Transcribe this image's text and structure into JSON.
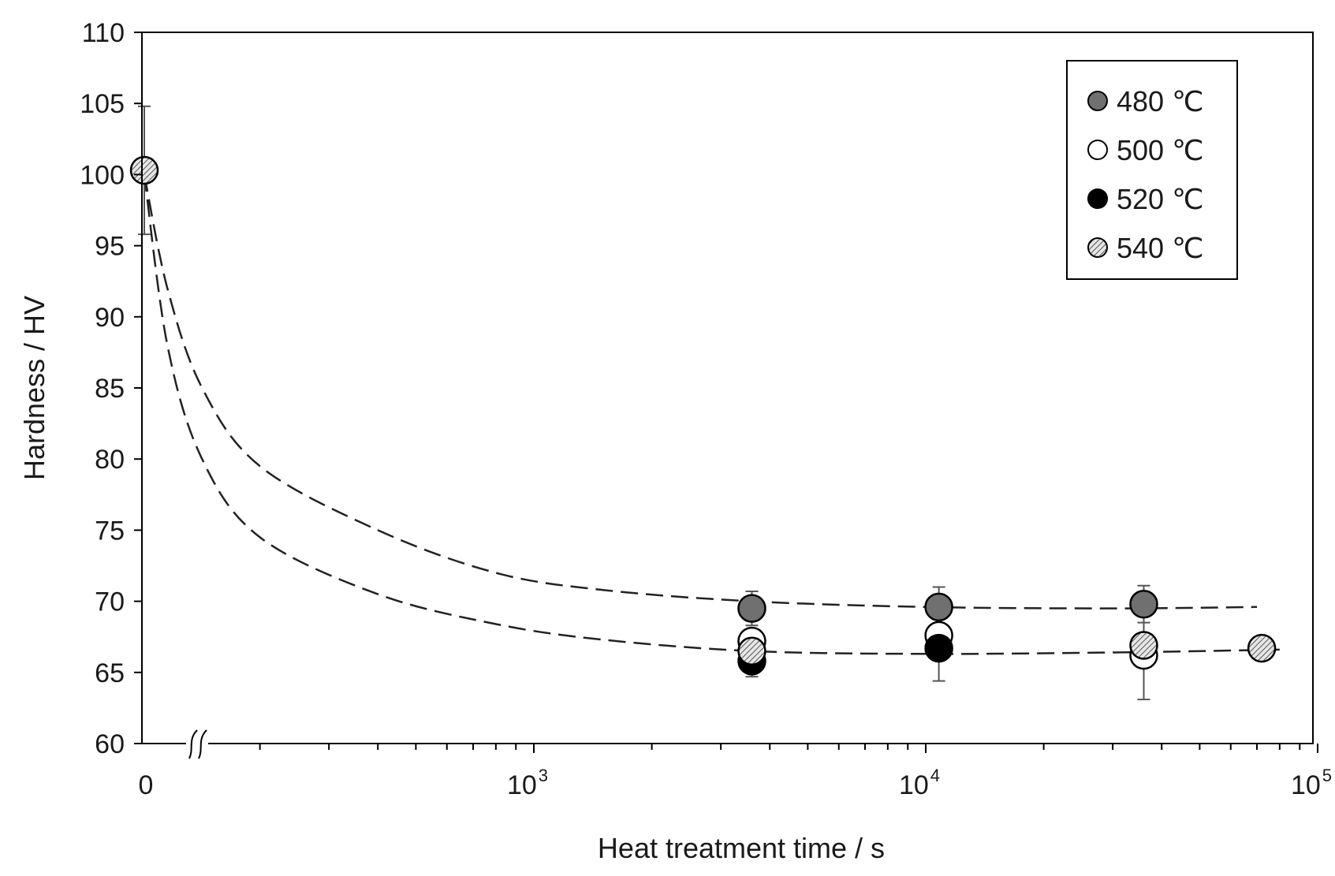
{
  "chart_data": {
    "type": "scatter",
    "xlabel": "Heat treatment time / s",
    "ylabel": "Hardness / HV",
    "x_scale": "log with axis break after 0",
    "xlim": [
      0,
      100000
    ],
    "ylim": [
      60,
      110
    ],
    "x_tick_labels": [
      {
        "value": 0,
        "base": "0",
        "exp": ""
      },
      {
        "value": 1000,
        "base": "10",
        "exp": "3"
      },
      {
        "value": 10000,
        "base": "10",
        "exp": "4"
      },
      {
        "value": 100000,
        "base": "10",
        "exp": "5"
      }
    ],
    "y_ticks": [
      "60",
      "65",
      "70",
      "75",
      "80",
      "85",
      "90",
      "95",
      "100",
      "105",
      "110"
    ],
    "legend_position": "top-right",
    "series": [
      {
        "name": "480 ℃",
        "marker": "gray",
        "points": [
          {
            "x": 3600,
            "y": 69.5,
            "err": 1.2
          },
          {
            "x": 10800,
            "y": 69.6,
            "err": 1.4
          },
          {
            "x": 36000,
            "y": 69.8,
            "err": 1.3
          }
        ]
      },
      {
        "name": "500 ℃",
        "marker": "open",
        "points": [
          {
            "x": 3600,
            "y": 67.2,
            "err": 0
          },
          {
            "x": 10800,
            "y": 67.6,
            "err": 0
          },
          {
            "x": 36000,
            "y": 66.2,
            "err": 3.1
          }
        ]
      },
      {
        "name": "520 ℃",
        "marker": "black",
        "points": [
          {
            "x": 3600,
            "y": 65.8,
            "err": 1.1
          },
          {
            "x": 10800,
            "y": 66.7,
            "err": 2.3
          }
        ]
      },
      {
        "name": "540 ℃",
        "marker": "hatched",
        "points": [
          {
            "x": 0,
            "y": 100.3,
            "err": 4.5
          },
          {
            "x": 3600,
            "y": 66.5,
            "err": 0
          },
          {
            "x": 36000,
            "y": 66.9,
            "err": 0
          },
          {
            "x": 72000,
            "y": 66.7,
            "err": 0
          }
        ]
      }
    ],
    "fit_curves": [
      {
        "style": "dashed",
        "description": "upper fit",
        "points": [
          [
            0,
            100
          ],
          [
            40,
            92
          ],
          [
            100,
            85
          ],
          [
            200,
            79.5
          ],
          [
            400,
            75
          ],
          [
            800,
            72
          ],
          [
            1500,
            70.8
          ],
          [
            3600,
            70.0
          ],
          [
            10000,
            69.6
          ],
          [
            30000,
            69.5
          ],
          [
            70000,
            69.6
          ]
        ]
      },
      {
        "style": "dashed",
        "description": "lower fit",
        "points": [
          [
            0,
            100
          ],
          [
            40,
            88
          ],
          [
            100,
            80
          ],
          [
            200,
            74.5
          ],
          [
            400,
            70.5
          ],
          [
            800,
            68.4
          ],
          [
            1500,
            67.3
          ],
          [
            3600,
            66.5
          ],
          [
            10000,
            66.3
          ],
          [
            30000,
            66.4
          ],
          [
            80000,
            66.6
          ]
        ]
      }
    ]
  }
}
